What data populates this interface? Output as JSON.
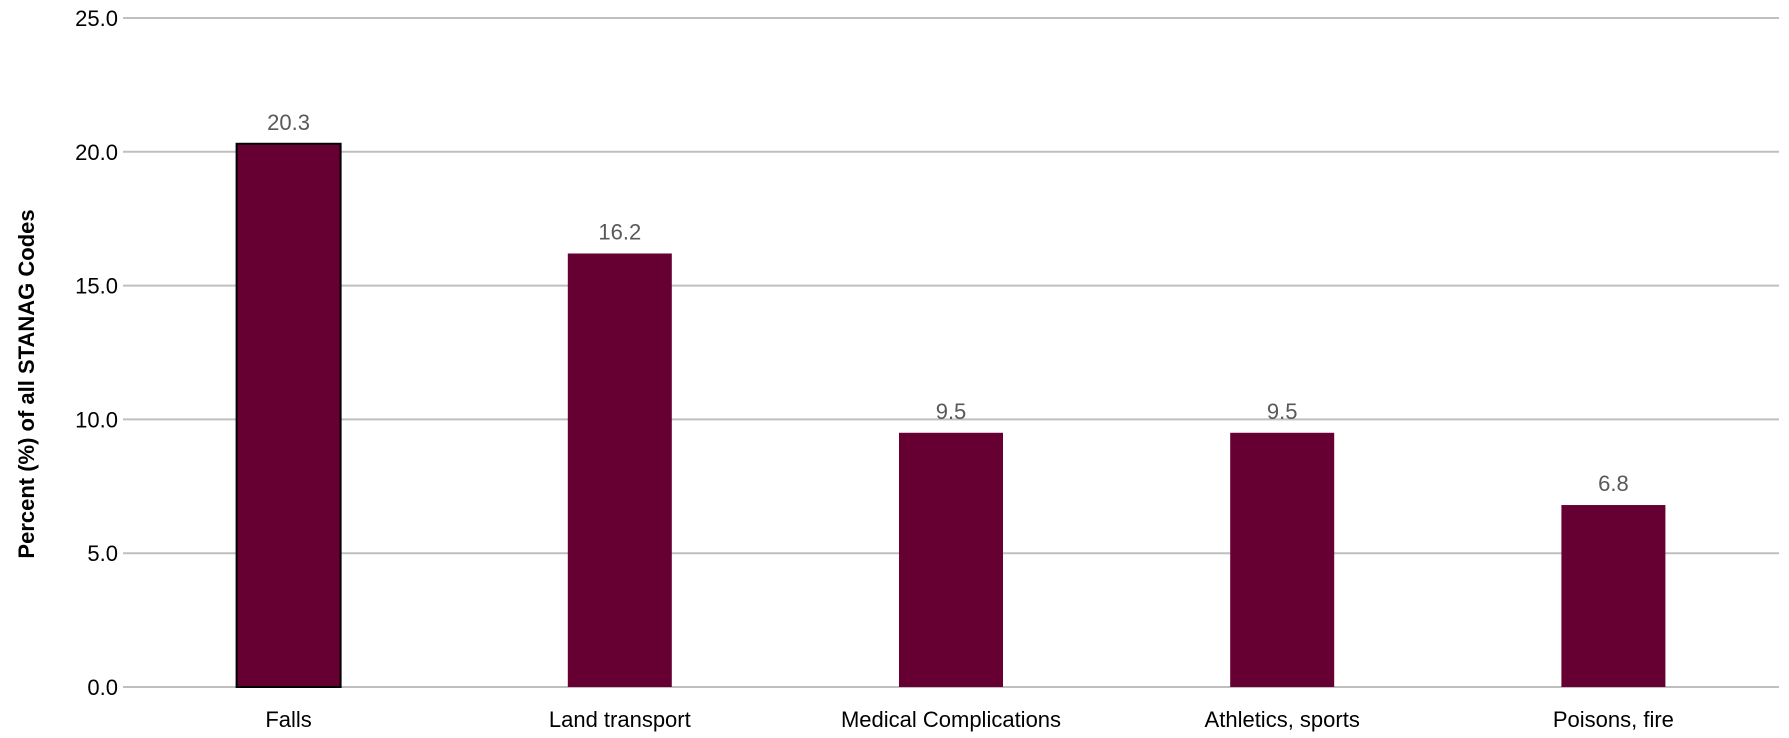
{
  "chart_data": {
    "type": "bar",
    "title": "",
    "xlabel": "",
    "ylabel": "Percent (%) of all STANAG Codes",
    "categories": [
      "Falls",
      "Land transport",
      "Medical Complications",
      "Athletics, sports",
      "Poisons, fire"
    ],
    "values": [
      20.3,
      16.2,
      9.5,
      9.5,
      6.8
    ],
    "data_labels": [
      "20.3",
      "16.2",
      "9.5",
      "9.5",
      "6.8"
    ],
    "ylim": [
      0,
      25
    ],
    "yticks": [
      "0.0",
      "5.0",
      "10.0",
      "15.0",
      "20.0",
      "25.0"
    ],
    "grid": true,
    "legend": "none",
    "colors": {
      "bar": "#660033",
      "grid": "#bfbfbf",
      "axis": "#bfbfbf",
      "data_label": "#595959"
    }
  }
}
